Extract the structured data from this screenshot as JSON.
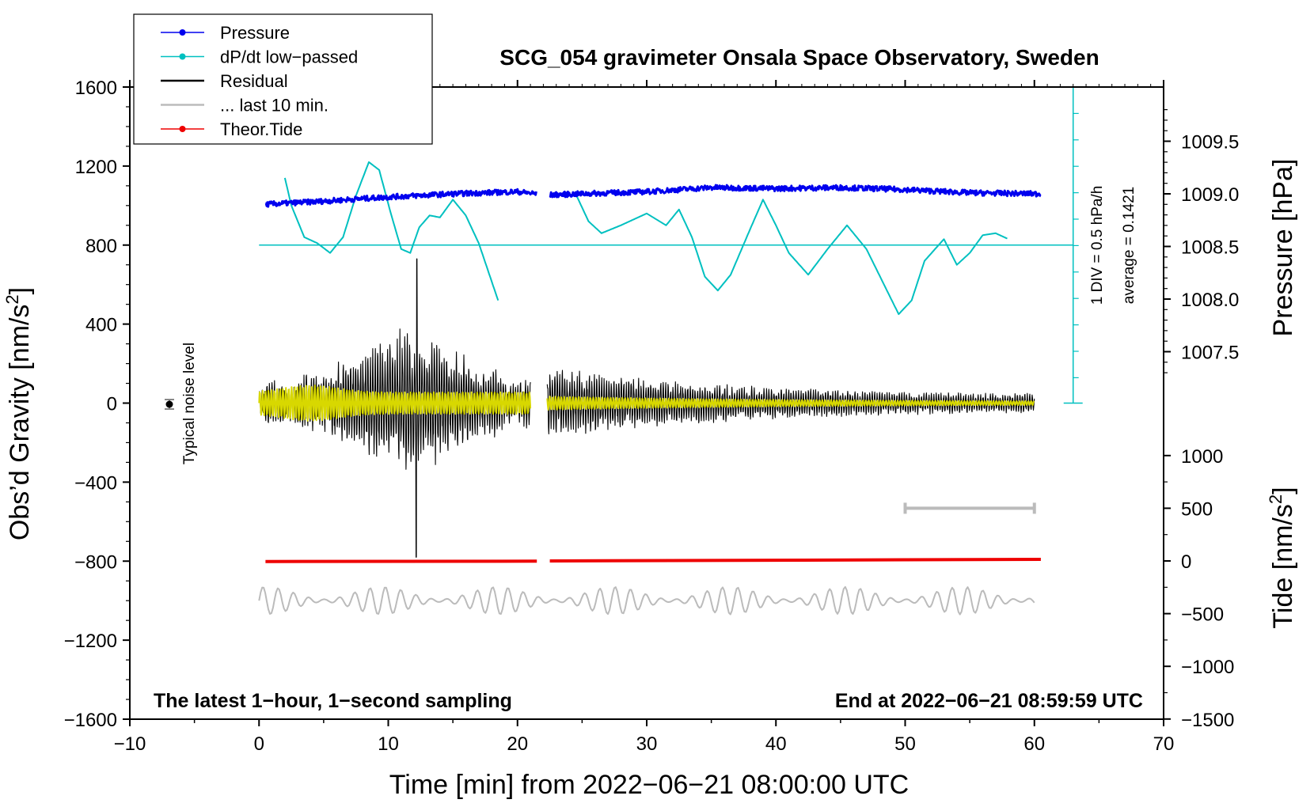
{
  "chart_data": {
    "type": "line",
    "title": "SCG_054 gravimeter Onsala Space Observatory, Sweden",
    "xlabel": "Time [min] from 2022−06−21 08:00:00 UTC",
    "ylabel_left": "Obs’d Gravity [nm/s",
    "ylabel_left_sup": "2",
    "ylabel_left_end": "]",
    "ylabel_right_pressure": "Pressure [hPa]",
    "ylabel_right_tide": "Tide [nm/s",
    "ylabel_right_tide_sup": "2",
    "ylabel_right_tide_end": "]",
    "xlim": [
      -10,
      70
    ],
    "ylim": [
      -1600,
      1600
    ],
    "x_ticks": [
      {
        "v": -10,
        "label": "−10"
      },
      {
        "v": 0,
        "label": "0"
      },
      {
        "v": 10,
        "label": "10"
      },
      {
        "v": 20,
        "label": "20"
      },
      {
        "v": 30,
        "label": "30"
      },
      {
        "v": 40,
        "label": "40"
      },
      {
        "v": 50,
        "label": "50"
      },
      {
        "v": 60,
        "label": "60"
      },
      {
        "v": 70,
        "label": "70"
      }
    ],
    "y_ticks": [
      {
        "v": 1600,
        "label": "1600"
      },
      {
        "v": 1200,
        "label": "1200"
      },
      {
        "v": 800,
        "label": "800"
      },
      {
        "v": 400,
        "label": "400"
      },
      {
        "v": 0,
        "label": "0"
      },
      {
        "v": -400,
        "label": "−400"
      },
      {
        "v": -800,
        "label": "−800"
      },
      {
        "v": -1200,
        "label": "−1200"
      },
      {
        "v": -1600,
        "label": "−1600"
      }
    ],
    "pressure_axis": {
      "ticks": [
        {
          "v": 1009.5,
          "label": "1009.5"
        },
        {
          "v": 1009.0,
          "label": "1009.0"
        },
        {
          "v": 1008.5,
          "label": "1008.5"
        },
        {
          "v": 1008.0,
          "label": "1008.0"
        },
        {
          "v": 1007.5,
          "label": "1007.5"
        }
      ]
    },
    "tide_axis": {
      "ticks": [
        {
          "v": 1000,
          "label": "1000"
        },
        {
          "v": 500,
          "label": "500"
        },
        {
          "v": 0,
          "label": "0"
        },
        {
          "v": -500,
          "label": "−500"
        },
        {
          "v": -1000,
          "label": "−1000"
        },
        {
          "v": -1500,
          "label": "−1500"
        }
      ]
    },
    "legend": [
      {
        "label": "Pressure",
        "color": "#0000ee",
        "marker": true
      },
      {
        "label": "dP/dt low−passed",
        "color": "#00c0c0",
        "marker": true
      },
      {
        "label": "Residual",
        "color": "#000000",
        "marker": false
      },
      {
        "label": "... last 10 min.",
        "color": "#bbbbbb",
        "marker": false
      },
      {
        "label": "Theor.Tide",
        "color": "#ee0000",
        "marker": true
      }
    ],
    "series": [
      {
        "name": "Pressure",
        "unit": "hPa",
        "x": [
          0.5,
          5,
          10,
          15,
          20,
          21.5,
          22.5,
          30,
          35,
          40,
          45,
          50,
          55,
          60.5
        ],
        "values": [
          1008.9,
          1008.93,
          1008.97,
          1009.0,
          1009.02,
          1009.0,
          1008.99,
          1009.02,
          1009.06,
          1009.05,
          1009.06,
          1009.04,
          1009.01,
          1009.0
        ]
      },
      {
        "name": "dP/dt low−passed",
        "unit": "nm/s2 display",
        "x": [
          2,
          2.5,
          3.5,
          4.5,
          5.5,
          6.5,
          7.5,
          8.5,
          9.3,
          10.2,
          11,
          11.7,
          12.4,
          13.2,
          14,
          15,
          16,
          17,
          18.5,
          24.5,
          25.5,
          26.5,
          28,
          30,
          31.5,
          32.5,
          33.5,
          34.5,
          35.5,
          36.5,
          38,
          39,
          40,
          41,
          42.5,
          44,
          45.5,
          47,
          49.5,
          50.5,
          51.5,
          53,
          54,
          55,
          56,
          57,
          58
        ],
        "values": [
          1140,
          1000,
          840,
          810,
          760,
          840,
          1050,
          1220,
          1180,
          960,
          780,
          760,
          890,
          950,
          940,
          1030,
          950,
          810,
          520,
          1060,
          920,
          860,
          900,
          960,
          900,
          980,
          840,
          640,
          570,
          650,
          880,
          1030,
          900,
          760,
          650,
          780,
          900,
          780,
          450,
          520,
          720,
          830,
          700,
          760,
          850,
          860,
          830
        ]
      },
      {
        "name": "Residual",
        "unit": "nm/s2",
        "x": [
          0,
          21,
          22.3,
          60
        ],
        "values": [
          0,
          0,
          0,
          0
        ],
        "peak_max": 730,
        "peak_min": -780
      },
      {
        "name": "... last 10 min.",
        "unit": "nm/s2",
        "x": [
          0,
          60
        ],
        "values": [
          -1000,
          -1000
        ]
      },
      {
        "name": "Theor.Tide",
        "unit": "nm/s2 (tide axis)",
        "x": [
          0.5,
          21.5,
          22.5,
          60.5
        ],
        "values": [
          -5,
          -2,
          0,
          15
        ]
      }
    ],
    "scale_bar": {
      "x_from": 50,
      "x_to": 60
    },
    "pressure_scale_label": "1 DIV = 0.5 hPa/h",
    "average_label": "average = 0.1421",
    "noise_label": "Typical noise level",
    "footer_left": "The latest 1−hour, 1−second sampling",
    "footer_right": "End at 2022−06−21 08:59:59 UTC"
  }
}
